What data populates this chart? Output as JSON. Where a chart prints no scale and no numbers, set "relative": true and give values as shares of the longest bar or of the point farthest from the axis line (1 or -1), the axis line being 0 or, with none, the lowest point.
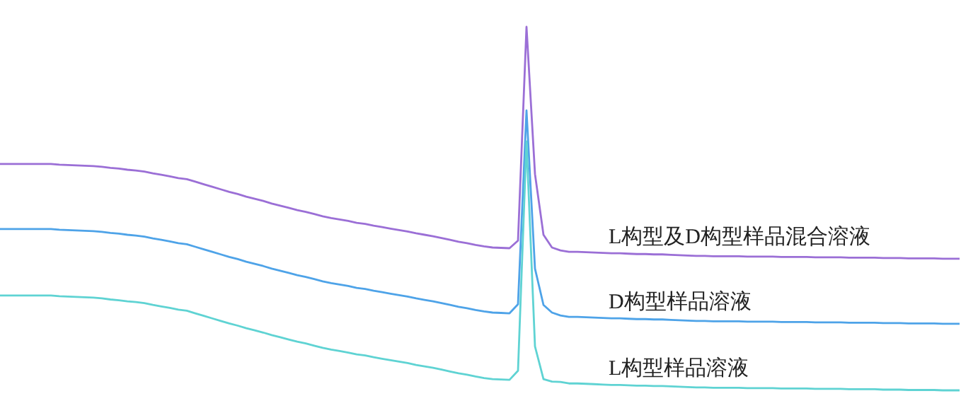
{
  "chart_data": {
    "type": "line",
    "relative": true,
    "categories": [
      null,
      null,
      null,
      null,
      null,
      null,
      null,
      null,
      null,
      null,
      null,
      null,
      null,
      null,
      null,
      null,
      null,
      null,
      null,
      null,
      null,
      null,
      null,
      null,
      null,
      null,
      null,
      null,
      null,
      null,
      null,
      null,
      null,
      null,
      null,
      null,
      null,
      null,
      null,
      null,
      null,
      null,
      null,
      null,
      null,
      null,
      null,
      null,
      null,
      null,
      null,
      null,
      null,
      null,
      null,
      null,
      null,
      null,
      null,
      null,
      null,
      null,
      null,
      null,
      null,
      null,
      null,
      null,
      null,
      null,
      null,
      null,
      null,
      null,
      null,
      null,
      null,
      null,
      null,
      null,
      null,
      null,
      null,
      null,
      null,
      null,
      null,
      null,
      null,
      null,
      null,
      null,
      null,
      null,
      null,
      null,
      null,
      null,
      null,
      null,
      null,
      null,
      null,
      null,
      null,
      null,
      null,
      null,
      null,
      null,
      null,
      null,
      null,
      null
    ],
    "series": [
      {
        "name": "L构型及D构型样品混合溶液",
        "color": "#9b6fd6",
        "values": [
          0.623,
          0.623,
          0.623,
          0.623,
          0.623,
          0.623,
          0.623,
          0.621,
          0.62,
          0.619,
          0.618,
          0.617,
          0.615,
          0.612,
          0.61,
          0.607,
          0.605,
          0.602,
          0.597,
          0.593,
          0.589,
          0.584,
          0.581,
          0.574,
          0.567,
          0.56,
          0.553,
          0.546,
          0.54,
          0.533,
          0.527,
          0.521,
          0.514,
          0.508,
          0.502,
          0.496,
          0.491,
          0.485,
          0.479,
          0.474,
          0.47,
          0.466,
          0.461,
          0.458,
          0.453,
          0.449,
          0.445,
          0.441,
          0.437,
          0.432,
          0.428,
          0.424,
          0.419,
          0.414,
          0.409,
          0.405,
          0.4,
          0.396,
          0.393,
          0.392,
          0.391,
          0.412,
          1,
          0.595,
          0.428,
          0.393,
          0.385,
          0.381,
          0.381,
          0.38,
          0.379,
          0.378,
          0.377,
          0.377,
          0.376,
          0.375,
          0.375,
          0.374,
          0.374,
          0.373,
          0.372,
          0.371,
          0.37,
          0.37,
          0.369,
          0.369,
          0.369,
          0.369,
          0.368,
          0.368,
          0.368,
          0.368,
          0.367,
          0.367,
          0.367,
          0.367,
          0.366,
          0.366,
          0.366,
          0.366,
          0.365,
          0.365,
          0.365,
          0.365,
          0.364,
          0.364,
          0.364,
          0.363,
          0.363,
          0.363,
          0.363,
          0.362,
          0.362,
          0.362
        ]
      },
      {
        "name": "D构型样品溶液",
        "color": "#4ea3e8",
        "values": [
          0.444,
          0.444,
          0.444,
          0.444,
          0.444,
          0.444,
          0.444,
          0.442,
          0.441,
          0.44,
          0.439,
          0.438,
          0.436,
          0.433,
          0.431,
          0.428,
          0.426,
          0.423,
          0.418,
          0.414,
          0.41,
          0.405,
          0.402,
          0.395,
          0.388,
          0.381,
          0.374,
          0.367,
          0.361,
          0.354,
          0.348,
          0.342,
          0.335,
          0.329,
          0.323,
          0.317,
          0.312,
          0.306,
          0.3,
          0.295,
          0.291,
          0.287,
          0.282,
          0.279,
          0.274,
          0.27,
          0.266,
          0.262,
          0.258,
          0.253,
          0.249,
          0.245,
          0.24,
          0.235,
          0.23,
          0.226,
          0.221,
          0.217,
          0.214,
          0.213,
          0.212,
          0.237,
          0.77,
          0.335,
          0.235,
          0.214,
          0.206,
          0.202,
          0.202,
          0.201,
          0.2,
          0.199,
          0.198,
          0.198,
          0.197,
          0.196,
          0.196,
          0.195,
          0.195,
          0.194,
          0.193,
          0.192,
          0.191,
          0.191,
          0.19,
          0.19,
          0.19,
          0.19,
          0.189,
          0.189,
          0.189,
          0.189,
          0.188,
          0.188,
          0.188,
          0.188,
          0.187,
          0.187,
          0.187,
          0.187,
          0.186,
          0.186,
          0.186,
          0.186,
          0.185,
          0.185,
          0.185,
          0.184,
          0.184,
          0.184,
          0.184,
          0.183,
          0.183,
          0.183
        ]
      },
      {
        "name": "L构型样品溶液",
        "color": "#5fd3d3",
        "values": [
          0.261,
          0.261,
          0.261,
          0.261,
          0.261,
          0.261,
          0.261,
          0.259,
          0.258,
          0.257,
          0.256,
          0.255,
          0.253,
          0.25,
          0.248,
          0.245,
          0.243,
          0.24,
          0.235,
          0.231,
          0.227,
          0.222,
          0.219,
          0.212,
          0.205,
          0.198,
          0.191,
          0.184,
          0.178,
          0.171,
          0.165,
          0.159,
          0.152,
          0.146,
          0.14,
          0.134,
          0.129,
          0.123,
          0.117,
          0.112,
          0.108,
          0.104,
          0.099,
          0.096,
          0.091,
          0.087,
          0.083,
          0.079,
          0.075,
          0.07,
          0.066,
          0.062,
          0.057,
          0.052,
          0.047,
          0.043,
          0.038,
          0.034,
          0.031,
          0.03,
          0.029,
          0.054,
          0.685,
          0.121,
          0.031,
          0.024,
          0.023,
          0.019,
          0.019,
          0.018,
          0.017,
          0.016,
          0.015,
          0.015,
          0.014,
          0.013,
          0.013,
          0.012,
          0.012,
          0.011,
          0.01,
          0.009,
          0.008,
          0.008,
          0.007,
          0.007,
          0.007,
          0.007,
          0.006,
          0.006,
          0.006,
          0.006,
          0.005,
          0.005,
          0.005,
          0.005,
          0.004,
          0.004,
          0.004,
          0.004,
          0.003,
          0.003,
          0.003,
          0.003,
          0.002,
          0.002,
          0.002,
          0.001,
          0.001,
          0.001,
          0.001,
          0,
          0,
          0
        ]
      }
    ]
  }
}
